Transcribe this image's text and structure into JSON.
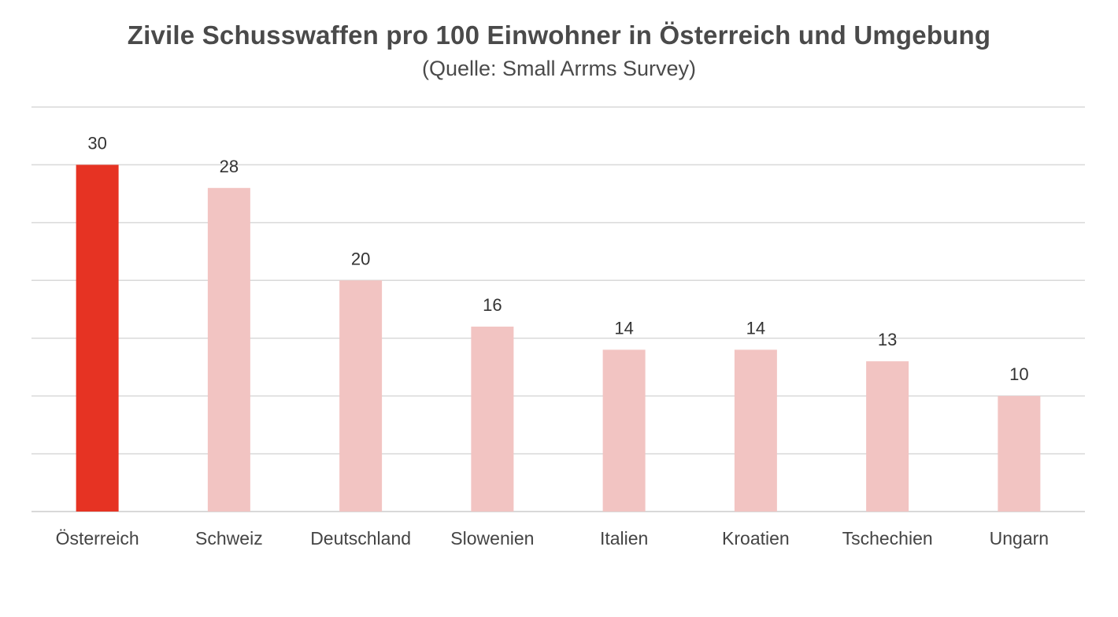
{
  "chart_data": {
    "type": "bar",
    "title": "Zivile Schusswaffen pro 100 Einwohner in Österreich und Umgebung",
    "subtitle": "(Quelle: Small Arrms Survey)",
    "categories": [
      "Österreich",
      "Schweiz",
      "Deutschland",
      "Slowenien",
      "Italien",
      "Kroatien",
      "Tschechien",
      "Ungarn"
    ],
    "values": [
      30,
      28,
      20,
      16,
      14,
      14,
      13,
      10
    ],
    "data_labels": [
      "30",
      "28",
      "20",
      "16",
      "14",
      "14",
      "13",
      "10"
    ],
    "ylim": [
      0,
      35
    ],
    "gridlines": [
      0,
      5,
      10,
      15,
      20,
      25,
      30,
      35
    ],
    "grid": true,
    "highlight_index": 0,
    "colors": {
      "highlight": "#e63323",
      "normal": "#f2c4c2",
      "grid": "#d9d9d9"
    }
  }
}
